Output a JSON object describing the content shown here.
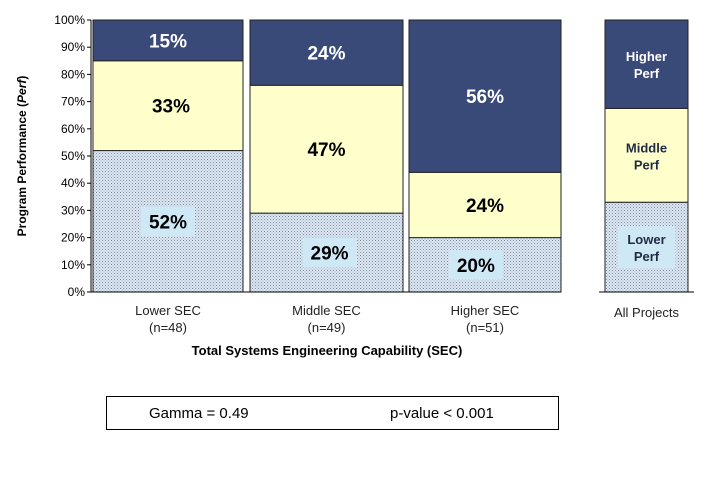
{
  "chart_data": {
    "type": "bar",
    "stacked": true,
    "percent": true,
    "ylabel": "Program Performance (Perf)",
    "ylabel_parts": [
      "Program Performance (",
      "Perf",
      ")"
    ],
    "xlabel": "Total Systems Engineering Capability (SEC)",
    "ylim": [
      0,
      100
    ],
    "yticks": [
      "0%",
      "10%",
      "20%",
      "30%",
      "40%",
      "50%",
      "60%",
      "70%",
      "80%",
      "90%",
      "100%"
    ],
    "grid": false,
    "categories": [
      {
        "label": "Lower SEC",
        "n": "(n=48)"
      },
      {
        "label": "Middle SEC",
        "n": "(n=49)"
      },
      {
        "label": "Higher SEC",
        "n": "(n=51)"
      }
    ],
    "series": [
      {
        "key": "lower",
        "values": [
          52,
          29,
          20
        ],
        "labels": [
          "52%",
          "29%",
          "20%"
        ]
      },
      {
        "key": "middle",
        "values": [
          33,
          47,
          24
        ],
        "labels": [
          "33%",
          "47%",
          "24%"
        ]
      },
      {
        "key": "higher",
        "values": [
          15,
          24,
          56
        ],
        "labels": [
          "15%",
          "24%",
          "56%"
        ]
      }
    ],
    "all_projects": {
      "label": "All Projects",
      "values": [
        33,
        34.5,
        32.5
      ],
      "segment_labels": [
        [
          "Lower",
          "Perf"
        ],
        [
          "Middle",
          "Perf"
        ],
        [
          "Higher",
          "Perf"
        ]
      ]
    },
    "colors": {
      "lower": "#dbe6f1",
      "middle": "#ffffcc",
      "higher": "#3a4a78",
      "label_box": "#cfe8f6"
    }
  },
  "stats": {
    "gamma": "Gamma = 0.49",
    "p_value": "p-value < 0.001"
  }
}
